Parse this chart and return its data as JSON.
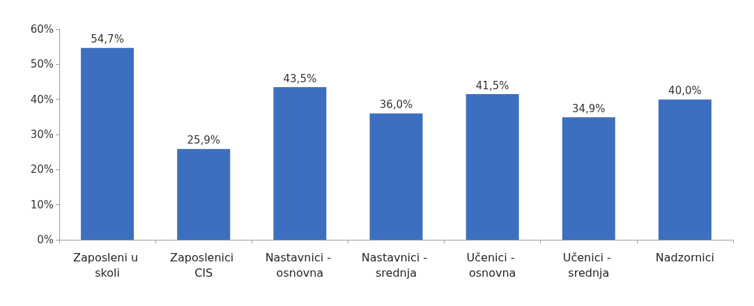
{
  "chart_data": {
    "type": "bar",
    "categories": [
      "Zaposleni u skoli",
      "Zaposlenici CIS",
      "Nastavnici - osnovna",
      "Nastavnici - srednja",
      "Učenici - osnovna",
      "Učenici - srednja",
      "Nadzornici"
    ],
    "values": [
      54.7,
      25.9,
      43.5,
      36.0,
      41.5,
      34.9,
      40.0
    ],
    "value_labels": [
      "54,7%",
      "25,9%",
      "43,5%",
      "36,0%",
      "41,5%",
      "34,9%",
      "40,0%"
    ],
    "color": "#3d6fc0",
    "ylim": [
      0,
      60
    ],
    "yticks": [
      {
        "value": 0,
        "label": "0%"
      },
      {
        "value": 10,
        "label": "10%"
      },
      {
        "value": 20,
        "label": "20%"
      },
      {
        "value": 30,
        "label": "30%"
      },
      {
        "value": 40,
        "label": "40%"
      },
      {
        "value": 50,
        "label": "50%"
      },
      {
        "value": 60,
        "label": "60%"
      }
    ],
    "grid": false
  }
}
